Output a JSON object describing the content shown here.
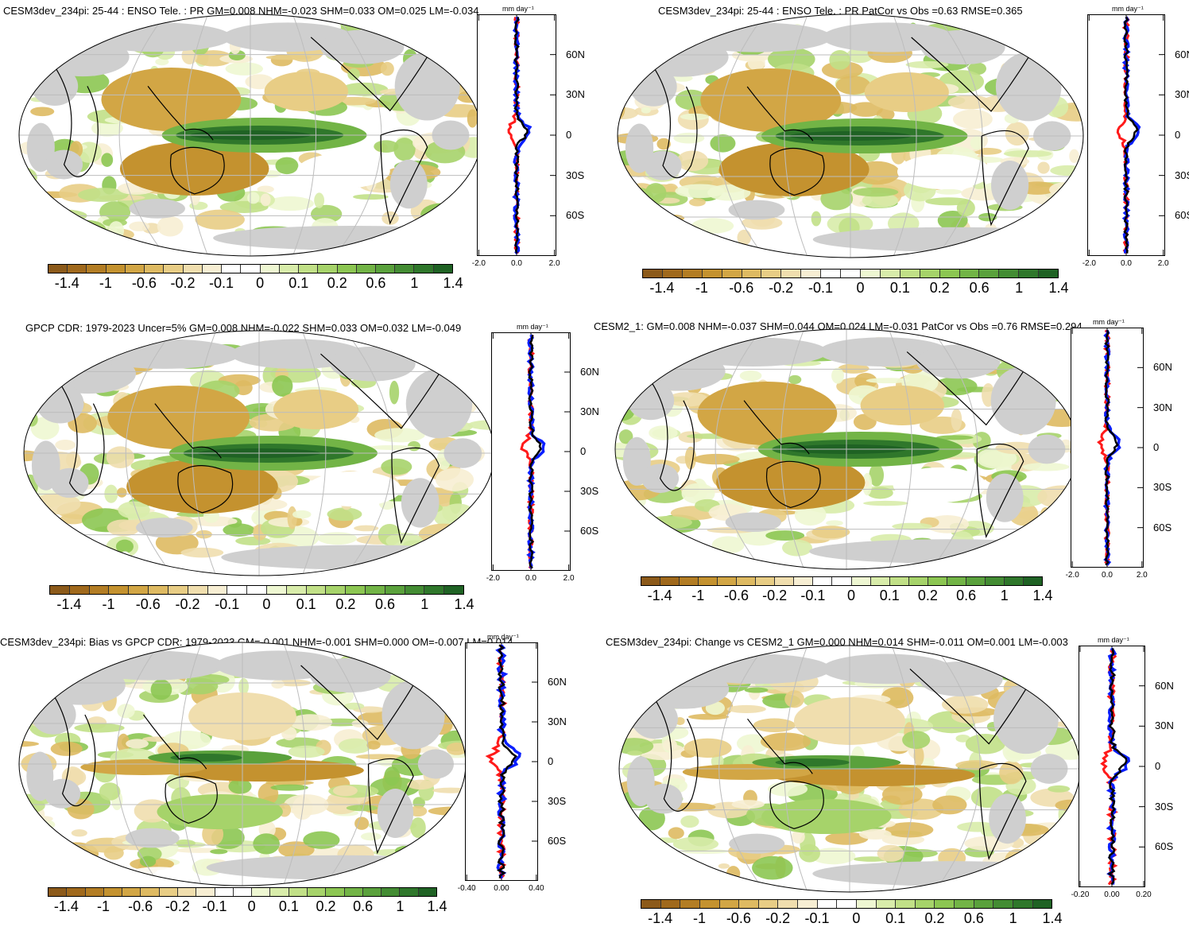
{
  "colorbar": {
    "labels": [
      "-1.4",
      "-1",
      "-0.6",
      "-0.2",
      "-0.1",
      "0",
      "0.1",
      "0.2",
      "0.6",
      "1",
      "1.4"
    ],
    "colors": [
      "#8c5a1a",
      "#a0691c",
      "#b37d24",
      "#c4922f",
      "#d2a645",
      "#deba62",
      "#e8cd85",
      "#f0deae",
      "#f7eed3",
      "#ffffff",
      "#ffffff",
      "#eef7d2",
      "#d8ecaa",
      "#c1e087",
      "#a6d36a",
      "#8cc652",
      "#72b446",
      "#5aa13c",
      "#438c33",
      "#2f772b",
      "#1f6224"
    ]
  },
  "profile_unit": "mm day⁻¹",
  "lat_ticks": [
    "60N",
    "30N",
    "0",
    "30S",
    "60S"
  ],
  "colors": {
    "ocean_green": "#5aa13c",
    "land": "#cfcfcf",
    "obs": "#ff1a1a",
    "model": "#0a1fff",
    "ref": "#000000"
  },
  "panels": [
    {
      "title": "CESM3dev_234pi: 25-44 : ENSO Tele. : PR GM=0.008 NHM=-0.023 SHM=0.033 OM=0.025 LM=-0.034",
      "xticks": [
        "-2.0",
        "0.0",
        "2.0"
      ]
    },
    {
      "title": "CESM3dev_234pi: 25-44 : ENSO Tele. : PR PatCor vs Obs =0.63 RMSE=0.365",
      "xticks": [
        "-2.0",
        "0.0",
        "2.0"
      ]
    },
    {
      "title": "GPCP CDR: 1979-2023 Uncer=5% GM=0.008 NHM=-0.022 SHM=0.033 OM=0.032 LM=-0.049",
      "xticks": [
        "-2.0",
        "0.0",
        "2.0"
      ]
    },
    {
      "title": "CESM2_1: GM=0.008 NHM=-0.037 SHM=0.044 OM=0.024 LM=-0.031 PatCor vs Obs =0.76 RMSE=0.294",
      "xticks": [
        "-2.0",
        "0.0",
        "2.0"
      ]
    },
    {
      "title": "CESM3dev_234pi: Bias vs GPCP CDR: 1979-2023 GM=-0.001 NHM=-0.001 SHM=0.000 OM=-0.007 LM=0.014",
      "xticks": [
        "-0.40",
        "0.00",
        "0.40"
      ]
    },
    {
      "title": "CESM3dev_234pi: Change vs CESM2_1 GM=0.000 NHM=0.014 SHM=-0.011 OM=0.001 LM=-0.003",
      "xticks": [
        "-0.20",
        "0.00",
        "0.20"
      ]
    }
  ]
}
